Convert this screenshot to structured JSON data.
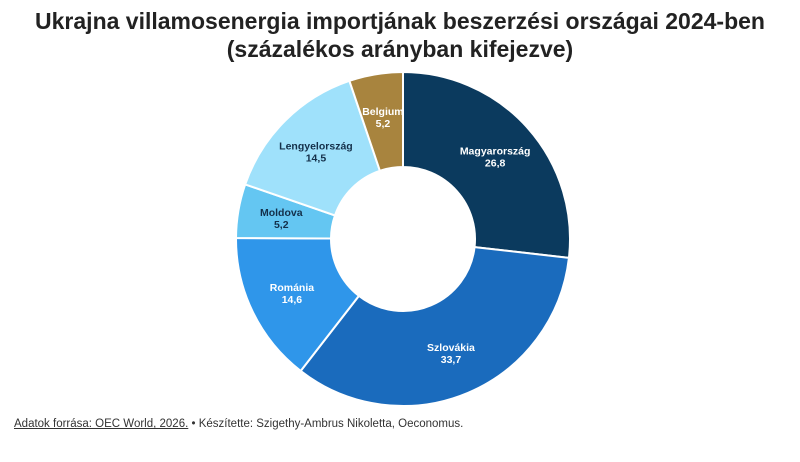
{
  "chart_data": {
    "type": "pie",
    "title": "Ukrajna villamosenergia importjának beszerzési országai 2024-ben",
    "subtitle": "(százalékos arányban kifejezve)",
    "slices": [
      {
        "label": "Magyarország",
        "value": 26.8,
        "value_text": "26,8",
        "color": "#0b3a5e",
        "text_color": "#ffffff"
      },
      {
        "label": "Szlovákia",
        "value": 33.7,
        "value_text": "33,7",
        "color": "#1a6bbd",
        "text_color": "#ffffff"
      },
      {
        "label": "Románia",
        "value": 14.6,
        "value_text": "14,6",
        "color": "#2f96ea",
        "text_color": "#ffffff"
      },
      {
        "label": "Moldova",
        "value": 5.2,
        "value_text": "5,2",
        "color": "#64c6f2",
        "text_color": "#14304a"
      },
      {
        "label": "Lengyelország",
        "value": 14.5,
        "value_text": "14,5",
        "color": "#9fe1fb",
        "text_color": "#14304a"
      },
      {
        "label": "Belgium",
        "value": 5.2,
        "value_text": "5,2",
        "color": "#a8843e",
        "text_color": "#ffffff"
      }
    ]
  },
  "footer": {
    "source_link": "Adatok forrása: OEC World, 2026.",
    "credit": " • Készítette: Szigethy-Ambrus Nikoletta, Oeconomus."
  }
}
